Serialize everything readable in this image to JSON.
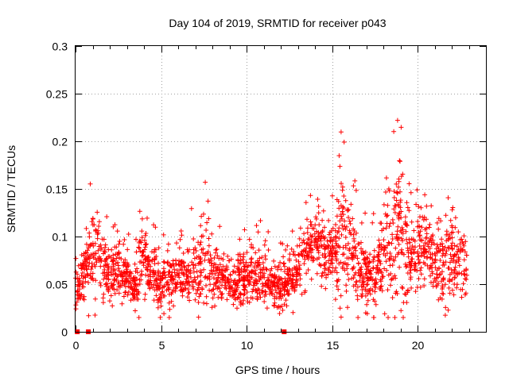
{
  "chart_data": {
    "type": "scatter",
    "title": "Day 104 of 2019, SRMTID for receiver p043",
    "xlabel": "GPS time / hours",
    "ylabel": "SRMTID / TECUs",
    "xlim": [
      0,
      24
    ],
    "ylim": [
      0,
      0.3
    ],
    "xticks": [
      0,
      5,
      10,
      15,
      20
    ],
    "xtick_labels": [
      "0",
      "5",
      "10",
      "15",
      "20"
    ],
    "yticks": [
      0,
      0.05,
      0.1,
      0.15,
      0.2,
      0.25,
      0.3
    ],
    "ytick_labels": [
      "0",
      "0.05",
      "0.1",
      "0.15",
      "0.2",
      "0.25",
      "0.3"
    ],
    "grid": true,
    "marker": "+",
    "color": "#ff0000",
    "zero_markers_x": [
      0.1,
      0.75,
      12.2
    ],
    "envelope": {
      "x": [
        0.0,
        0.3,
        0.6,
        1.0,
        1.2,
        1.5,
        2.0,
        2.5,
        3.0,
        3.5,
        3.8,
        4.2,
        4.6,
        5.0,
        5.5,
        6.0,
        6.5,
        7.0,
        7.5,
        7.8,
        8.2,
        8.8,
        9.3,
        9.8,
        10.3,
        10.8,
        11.3,
        11.8,
        12.3,
        12.8,
        13.3,
        13.8,
        14.3,
        14.8,
        15.2,
        15.5,
        15.8,
        16.2,
        16.5,
        16.8,
        17.2,
        17.6,
        18.0,
        18.3,
        18.6,
        19.0,
        19.3,
        19.6,
        20.0,
        20.4,
        20.8,
        21.2,
        21.6,
        22.0,
        22.3,
        22.6,
        22.9
      ],
      "center": [
        0.05,
        0.05,
        0.07,
        0.08,
        0.09,
        0.07,
        0.06,
        0.065,
        0.06,
        0.045,
        0.07,
        0.065,
        0.06,
        0.05,
        0.055,
        0.06,
        0.06,
        0.065,
        0.08,
        0.065,
        0.06,
        0.055,
        0.05,
        0.055,
        0.06,
        0.06,
        0.05,
        0.045,
        0.05,
        0.06,
        0.08,
        0.09,
        0.085,
        0.085,
        0.08,
        0.1,
        0.11,
        0.08,
        0.07,
        0.06,
        0.055,
        0.06,
        0.08,
        0.1,
        0.09,
        0.1,
        0.085,
        0.08,
        0.085,
        0.09,
        0.08,
        0.07,
        0.06,
        0.08,
        0.075,
        0.07,
        0.065
      ],
      "spread": [
        0.03,
        0.03,
        0.04,
        0.05,
        0.06,
        0.04,
        0.035,
        0.035,
        0.03,
        0.03,
        0.045,
        0.035,
        0.03,
        0.03,
        0.03,
        0.03,
        0.035,
        0.04,
        0.07,
        0.04,
        0.03,
        0.03,
        0.03,
        0.03,
        0.035,
        0.035,
        0.03,
        0.03,
        0.03,
        0.03,
        0.035,
        0.035,
        0.035,
        0.035,
        0.04,
        0.1,
        0.08,
        0.06,
        0.05,
        0.04,
        0.035,
        0.04,
        0.06,
        0.09,
        0.08,
        0.11,
        0.06,
        0.05,
        0.05,
        0.045,
        0.04,
        0.04,
        0.06,
        0.06,
        0.045,
        0.04,
        0.035
      ]
    },
    "n_points": 2200,
    "seed": 104
  }
}
